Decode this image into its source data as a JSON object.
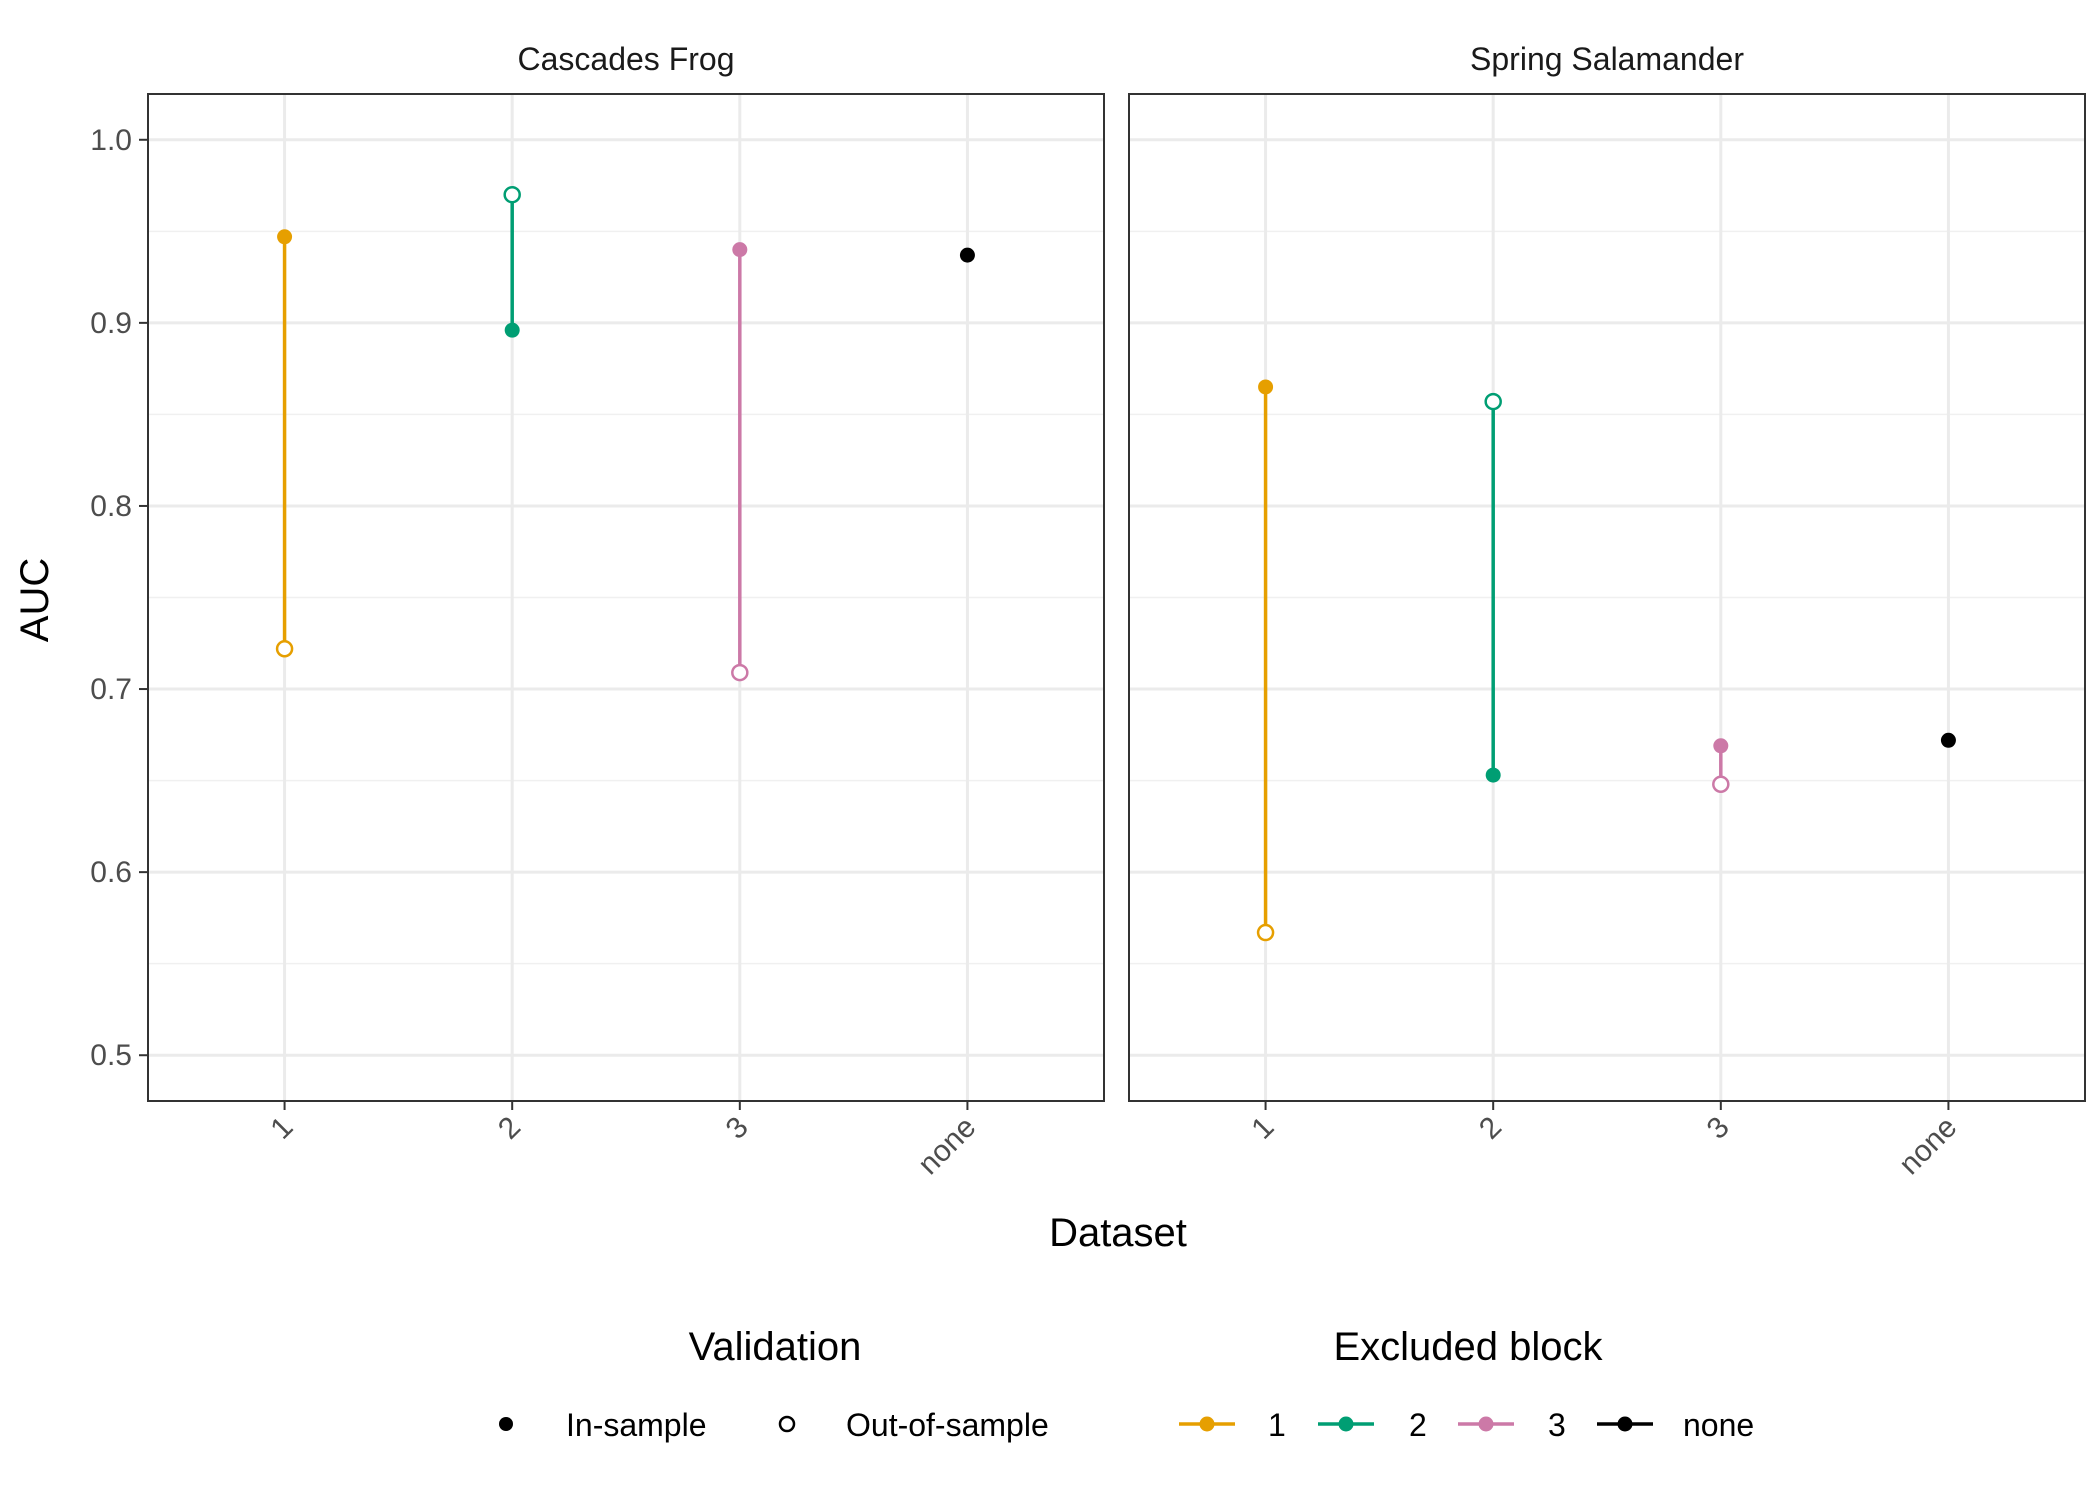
{
  "chart_data": {
    "type": "scatter",
    "xlabel": "Dataset",
    "ylabel": "AUC",
    "ylim": [
      0.475,
      1.025
    ],
    "y_ticks": [
      "0.5",
      "0.6",
      "0.7",
      "0.8",
      "0.9",
      "1.0"
    ],
    "categories": [
      "1",
      "2",
      "3",
      "none"
    ],
    "grid": true,
    "legend_position": "bottom",
    "panels": [
      {
        "title": "Cascades Frog",
        "points": [
          {
            "dataset": "1",
            "excluded_block": "1",
            "in_sample": 0.947,
            "out_of_sample": 0.722
          },
          {
            "dataset": "2",
            "excluded_block": "2",
            "in_sample": 0.896,
            "out_of_sample": 0.97
          },
          {
            "dataset": "3",
            "excluded_block": "3",
            "in_sample": 0.94,
            "out_of_sample": 0.709
          },
          {
            "dataset": "none",
            "excluded_block": "none",
            "in_sample": 0.937,
            "out_of_sample": null
          }
        ]
      },
      {
        "title": "Spring Salamander",
        "points": [
          {
            "dataset": "1",
            "excluded_block": "1",
            "in_sample": 0.865,
            "out_of_sample": 0.567
          },
          {
            "dataset": "2",
            "excluded_block": "2",
            "in_sample": 0.653,
            "out_of_sample": 0.857
          },
          {
            "dataset": "3",
            "excluded_block": "3",
            "in_sample": 0.669,
            "out_of_sample": 0.648
          },
          {
            "dataset": "none",
            "excluded_block": "none",
            "in_sample": 0.672,
            "out_of_sample": null
          }
        ]
      }
    ],
    "legends": [
      {
        "title": "Validation",
        "entries": [
          {
            "label": "In-sample",
            "shape": "filled-circle"
          },
          {
            "label": "Out-of-sample",
            "shape": "open-circle"
          }
        ]
      },
      {
        "title": "Excluded block",
        "entries": [
          {
            "label": "1",
            "color": "#E69F00"
          },
          {
            "label": "2",
            "color": "#009E73"
          },
          {
            "label": "3",
            "color": "#CC79A7"
          },
          {
            "label": "none",
            "color": "#000000"
          }
        ]
      }
    ]
  }
}
